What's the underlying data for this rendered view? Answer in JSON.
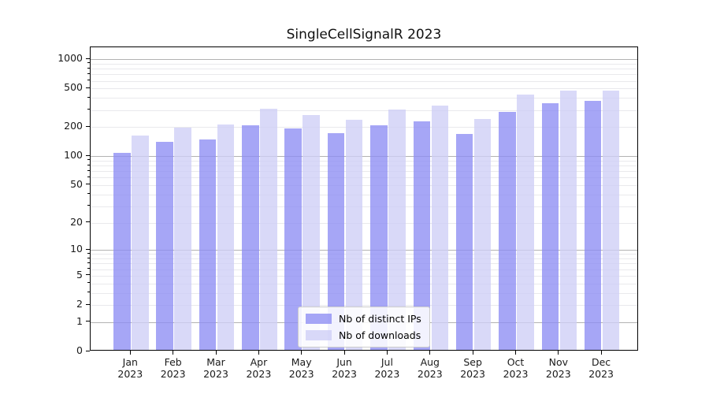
{
  "chart_data": {
    "type": "bar",
    "title": "SingleCellSignalR 2023",
    "categories": [
      "Jan",
      "Feb",
      "Mar",
      "Apr",
      "May",
      "Jun",
      "Jul",
      "Aug",
      "Sep",
      "Oct",
      "Nov",
      "Dec"
    ],
    "year": "2023",
    "series": [
      {
        "name": "Nb of distinct IPs",
        "color": "rgba(141,141,244,0.78)",
        "solid_color": "#a6a6f6",
        "values": [
          105,
          136,
          143,
          201,
          188,
          168,
          202,
          222,
          165,
          278,
          338,
          358
        ]
      },
      {
        "name": "Nb of downloads",
        "color": "rgba(206,206,246,0.78)",
        "solid_color": "#d9d9f8",
        "values": [
          158,
          192,
          206,
          301,
          256,
          228,
          293,
          323,
          233,
          415,
          455,
          456
        ]
      }
    ],
    "yscale": "log1p",
    "yticks": [
      1000,
      500,
      200,
      100,
      50,
      20,
      10,
      5,
      2,
      1,
      0
    ],
    "ylim": [
      0,
      1300
    ],
    "xlabel": "",
    "ylabel": "",
    "grid": "horizontal major and minor",
    "legend_position": "inside lower-center",
    "colors": {
      "spine": "#000000",
      "major_grid": "#b2b2b2",
      "minor_grid": "#e9e9ec",
      "tick_label": "#1a1a1a",
      "background": "#ffffff"
    }
  }
}
